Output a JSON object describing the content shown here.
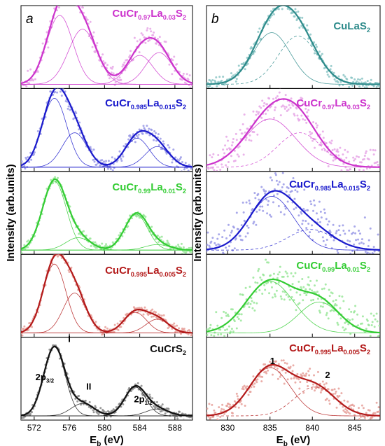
{
  "chart_data": [
    {
      "type": "line",
      "panel_letter": "a",
      "xlabel": "E",
      "xlabel_sub": "b",
      "xlabel_unit": " (eV)",
      "ylabel": "Intensity (arb.units)",
      "xlim": [
        570.5,
        590
      ],
      "xticks": [
        572,
        576,
        580,
        584,
        588
      ],
      "series": [
        {
          "name": [
            {
              "t": "CuCr"
            },
            {
              "t": "0.97",
              "sub": true
            },
            {
              "t": "La"
            },
            {
              "t": "0.03",
              "sub": true
            },
            {
              "t": "S"
            },
            {
              "t": "2",
              "sub": true
            }
          ],
          "color": "#cc33cc",
          "light": "#e6a6e6",
          "noise": 0.07,
          "seed": 11,
          "components": [
            [
              574.9,
              1.5,
              1.0
            ],
            [
              577.5,
              1.6,
              0.8
            ],
            [
              584.0,
              1.5,
              0.42
            ],
            [
              586.2,
              1.5,
              0.46
            ]
          ]
        },
        {
          "name": [
            {
              "t": "CuCr"
            },
            {
              "t": "0.985",
              "sub": true
            },
            {
              "t": "La"
            },
            {
              "t": "0.015",
              "sub": true
            },
            {
              "t": "S"
            },
            {
              "t": "2",
              "sub": true
            }
          ],
          "color": "#1a1acc",
          "light": "#9a9ae6",
          "noise": 0.05,
          "seed": 23,
          "components": [
            [
              574.3,
              1.4,
              1.0
            ],
            [
              576.6,
              1.4,
              0.5
            ],
            [
              583.7,
              1.4,
              0.42
            ],
            [
              586.0,
              1.4,
              0.3
            ]
          ]
        },
        {
          "name": [
            {
              "t": "CuCr"
            },
            {
              "t": "0.99",
              "sub": true
            },
            {
              "t": "La"
            },
            {
              "t": "0.01",
              "sub": true
            },
            {
              "t": "S"
            },
            {
              "t": "2",
              "sub": true
            }
          ],
          "color": "#33cc33",
          "light": "#99e699",
          "noise": 0.03,
          "seed": 37,
          "components": [
            [
              574.3,
              1.35,
              1.0
            ],
            [
              577.0,
              1.4,
              0.18
            ],
            [
              583.6,
              1.3,
              0.52
            ],
            [
              586.0,
              1.4,
              0.08
            ]
          ]
        },
        {
          "name": [
            {
              "t": "CuCr"
            },
            {
              "t": "0.995",
              "sub": true
            },
            {
              "t": "La"
            },
            {
              "t": "0.005",
              "sub": true
            },
            {
              "t": "S"
            },
            {
              "t": "2",
              "sub": true
            }
          ],
          "color": "#b31a1a",
          "light": "#e6a09a",
          "noise": 0.03,
          "seed": 41,
          "components": [
            [
              574.3,
              1.3,
              1.0
            ],
            [
              576.6,
              1.3,
              0.58
            ],
            [
              583.5,
              1.3,
              0.3
            ],
            [
              586.0,
              1.3,
              0.2
            ]
          ]
        },
        {
          "name": [
            {
              "t": "CuCrS"
            },
            {
              "t": "2",
              "sub": true
            }
          ],
          "color": "#111111",
          "light": "#888888",
          "noise": 0.03,
          "seed": 53,
          "components": [
            [
              574.3,
              1.2,
              1.0
            ],
            [
              577.5,
              1.3,
              0.18
            ],
            [
              583.5,
              1.2,
              0.42
            ],
            [
              586.0,
              1.3,
              0.1
            ]
          ]
        }
      ],
      "annotations": [
        {
          "label": [
            {
              "t": "I"
            }
          ],
          "x": 576.0,
          "y": 1.07
        },
        {
          "label": [
            {
              "t": "2p"
            },
            {
              "t": "3/2",
              "sub": true
            }
          ],
          "x": 573.2,
          "y": 0.52
        },
        {
          "label": [
            {
              "t": "II"
            }
          ],
          "x": 578.2,
          "y": 0.38
        },
        {
          "label": [
            {
              "t": "2p"
            },
            {
              "t": "1/2",
              "sub": true
            }
          ],
          "x": 584.4,
          "y": 0.2
        }
      ]
    },
    {
      "type": "line",
      "panel_letter": "b",
      "xlabel": "E",
      "xlabel_sub": "b",
      "xlabel_unit": " (eV)",
      "ylabel": "Intensity (arb.units)",
      "xlim": [
        827.5,
        848
      ],
      "xticks": [
        830,
        835,
        840,
        845
      ],
      "series": [
        {
          "name": [
            {
              "t": "CuLaS"
            },
            {
              "t": "2",
              "sub": true
            }
          ],
          "color": "#2e8b8b",
          "light": "#8cc6c6",
          "noise": 0.05,
          "seed": 61,
          "components": [
            [
              835.2,
              2.2,
              0.75,
              "solid"
            ],
            [
              838.3,
              2.3,
              0.7,
              "dash"
            ]
          ]
        },
        {
          "name": [
            {
              "t": "CuCr"
            },
            {
              "t": "0.97",
              "sub": true
            },
            {
              "t": "La"
            },
            {
              "t": "0.03",
              "sub": true
            },
            {
              "t": "S"
            },
            {
              "t": "2",
              "sub": true
            }
          ],
          "color": "#cc33cc",
          "light": "#e6a6e6",
          "noise": 0.12,
          "seed": 67,
          "components": [
            [
              835.0,
              3.0,
              0.7,
              "solid"
            ],
            [
              838.5,
              2.6,
              0.5,
              "dash"
            ]
          ]
        },
        {
          "name": [
            {
              "t": "CuCr"
            },
            {
              "t": "0.985",
              "sub": true
            },
            {
              "t": "La"
            },
            {
              "t": "0.015",
              "sub": true
            },
            {
              "t": "S"
            },
            {
              "t": "2",
              "sub": true
            }
          ],
          "color": "#1a1acc",
          "light": "#9a9ae6",
          "noise": 0.16,
          "seed": 71,
          "components": [
            [
              835.2,
              2.6,
              0.78,
              "solid"
            ],
            [
              839.8,
              2.7,
              0.3,
              "dash"
            ]
          ]
        },
        {
          "name": [
            {
              "t": "CuCr"
            },
            {
              "t": "0.99",
              "sub": true
            },
            {
              "t": "La"
            },
            {
              "t": "0.01",
              "sub": true
            },
            {
              "t": "S"
            },
            {
              "t": "2",
              "sub": true
            }
          ],
          "color": "#33cc33",
          "light": "#99e699",
          "noise": 0.14,
          "seed": 79,
          "components": [
            [
              835.0,
              2.8,
              0.75,
              "solid"
            ],
            [
              840.8,
              2.4,
              0.45,
              "solid"
            ]
          ]
        },
        {
          "name": [
            {
              "t": "CuCr"
            },
            {
              "t": "0.995",
              "sub": true
            },
            {
              "t": "La"
            },
            {
              "t": "0.005",
              "sub": true
            },
            {
              "t": "S"
            },
            {
              "t": "2",
              "sub": true
            }
          ],
          "color": "#b31a1a",
          "light": "#e6a09a",
          "noise": 0.08,
          "seed": 83,
          "components": [
            [
              835.0,
              2.4,
              0.7,
              "solid"
            ],
            [
              840.3,
              2.4,
              0.42,
              "dash"
            ]
          ]
        }
      ],
      "annotations": [
        {
          "label": [
            {
              "t": "1"
            }
          ],
          "x": 835.3,
          "y": 0.75
        },
        {
          "label": [
            {
              "t": "2"
            }
          ],
          "x": 841.8,
          "y": 0.55
        }
      ]
    }
  ]
}
